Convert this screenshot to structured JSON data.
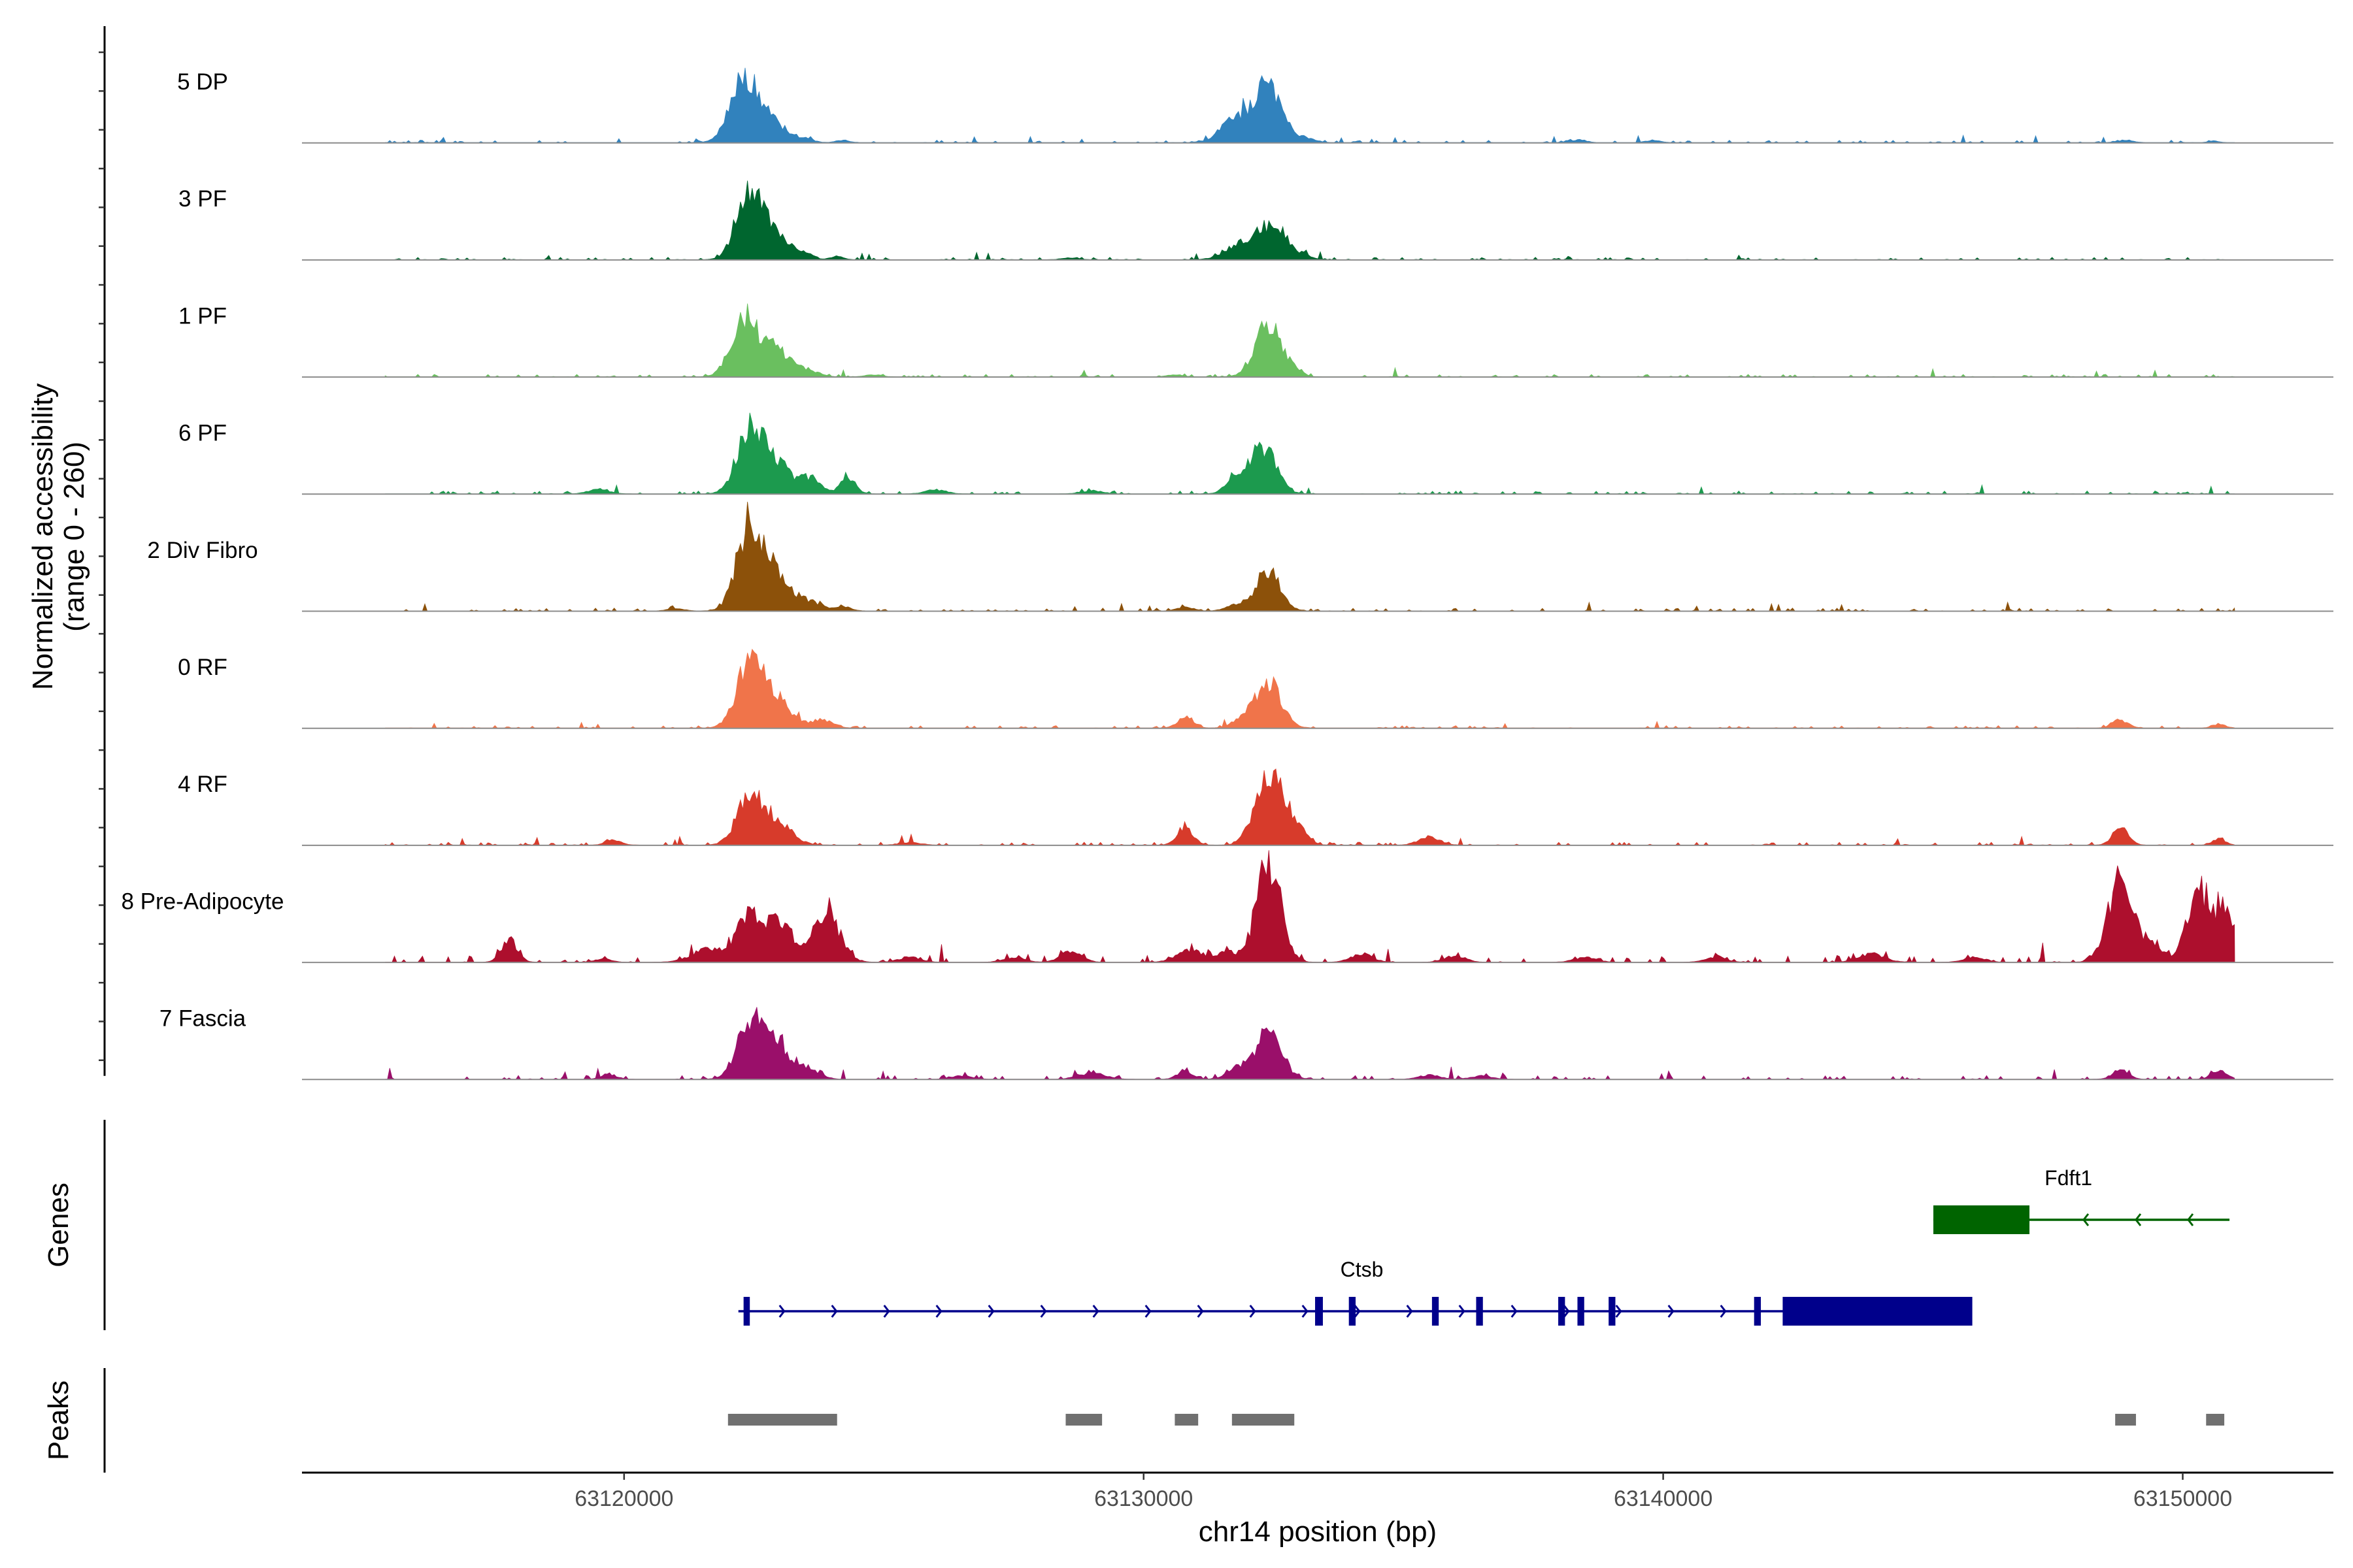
{
  "chart_data": {
    "type": "area",
    "title": "",
    "xlabel": "chr14 position (bp)",
    "ylabel": "Normalized accessibility\n(range 0 - 260)",
    "ylim": [
      0,
      260
    ],
    "xlim": [
      63113800,
      63152900
    ],
    "x_ticks": [
      63120000,
      63130000,
      63140000,
      63150000
    ],
    "x_tick_labels": [
      "63120000",
      "63130000",
      "63140000",
      "63150000"
    ],
    "panels": {
      "coverage": "Normalized accessibility\n(range 0 - 260)",
      "genes": "Genes",
      "peaks": "Peaks"
    },
    "series": [
      {
        "name": "5 DP",
        "color": "#3182bd",
        "peaks": [
          [
            63122300,
            150,
            260
          ],
          [
            63122800,
            55,
            300
          ],
          [
            63123500,
            8,
            150
          ],
          [
            63124200,
            6,
            120
          ],
          [
            63131800,
            55,
            300
          ],
          [
            63132400,
            135,
            260
          ],
          [
            63133100,
            10,
            200
          ],
          [
            63138400,
            8,
            120
          ],
          [
            63139800,
            5,
            150
          ],
          [
            63148900,
            6,
            150
          ],
          [
            63150600,
            4,
            100
          ]
        ],
        "noise": 2.5
      },
      {
        "name": "3 PF",
        "color": "#00662f",
        "peaks": [
          [
            63122400,
            165,
            240
          ],
          [
            63122900,
            60,
            300
          ],
          [
            63123500,
            10,
            150
          ],
          [
            63124100,
            8,
            120
          ],
          [
            63131900,
            40,
            300
          ],
          [
            63132500,
            85,
            250
          ],
          [
            63133100,
            10,
            150
          ],
          [
            63128600,
            5,
            150
          ]
        ],
        "noise": 2.5
      },
      {
        "name": "1 PF",
        "color": "#6abf5f",
        "peaks": [
          [
            63122300,
            140,
            240
          ],
          [
            63122900,
            70,
            300
          ],
          [
            63123600,
            12,
            180
          ],
          [
            63132400,
            130,
            250
          ],
          [
            63132900,
            12,
            150
          ],
          [
            63124800,
            5,
            150
          ],
          [
            63130600,
            5,
            150
          ]
        ],
        "noise": 2.5
      },
      {
        "name": "6 PF",
        "color": "#1c9a4e",
        "peaks": [
          [
            63122400,
            145,
            240
          ],
          [
            63122900,
            80,
            300
          ],
          [
            63123600,
            35,
            180
          ],
          [
            63124300,
            40,
            150
          ],
          [
            63132300,
            110,
            250
          ],
          [
            63131800,
            35,
            200
          ],
          [
            63119500,
            10,
            200
          ],
          [
            63126000,
            10,
            200
          ],
          [
            63129000,
            8,
            200
          ]
        ],
        "noise": 3
      },
      {
        "name": "2 Div Fibro",
        "color": "#8c510a",
        "peaks": [
          [
            63122400,
            195,
            240
          ],
          [
            63122900,
            90,
            300
          ],
          [
            63123600,
            20,
            200
          ],
          [
            63124200,
            12,
            150
          ],
          [
            63132400,
            100,
            230
          ],
          [
            63131800,
            15,
            200
          ],
          [
            63130800,
            10,
            150
          ],
          [
            63121000,
            6,
            150
          ]
        ],
        "noise": 3
      },
      {
        "name": "0 RF",
        "color": "#f0744a",
        "peaks": [
          [
            63122400,
            150,
            240
          ],
          [
            63122900,
            70,
            300
          ],
          [
            63123800,
            20,
            200
          ],
          [
            63132400,
            110,
            250
          ],
          [
            63130800,
            25,
            150
          ],
          [
            63131900,
            20,
            200
          ],
          [
            63148800,
            20,
            150
          ],
          [
            63150700,
            10,
            120
          ]
        ],
        "noise": 2.5
      },
      {
        "name": "4 RF",
        "color": "#d73b2b",
        "peaks": [
          [
            63122400,
            110,
            240
          ],
          [
            63122900,
            60,
            300
          ],
          [
            63130800,
            45,
            150
          ],
          [
            63132400,
            180,
            250
          ],
          [
            63132900,
            50,
            200
          ],
          [
            63135500,
            20,
            200
          ],
          [
            63119800,
            12,
            150
          ],
          [
            63148800,
            40,
            150
          ],
          [
            63150700,
            15,
            120
          ],
          [
            63125500,
            6,
            200
          ]
        ],
        "noise": 3
      },
      {
        "name": "8 Pre-Adipocyte",
        "color": "#ad0f2d",
        "peaks": [
          [
            63122400,
            110,
            250
          ],
          [
            63123000,
            100,
            250
          ],
          [
            63123900,
            120,
            250
          ],
          [
            63121600,
            30,
            300
          ],
          [
            63117800,
            55,
            150
          ],
          [
            63128600,
            25,
            200
          ],
          [
            63130900,
            30,
            250
          ],
          [
            63131600,
            25,
            200
          ],
          [
            63132400,
            250,
            230
          ],
          [
            63134200,
            20,
            200
          ],
          [
            63136000,
            15,
            200
          ],
          [
            63138500,
            12,
            200
          ],
          [
            63141000,
            12,
            200
          ],
          [
            63144000,
            20,
            250
          ],
          [
            63146000,
            12,
            200
          ],
          [
            63148800,
            195,
            240
          ],
          [
            63149400,
            45,
            200
          ],
          [
            63150300,
            180,
            220
          ],
          [
            63150800,
            115,
            180
          ],
          [
            63125500,
            12,
            200
          ],
          [
            63127500,
            12,
            200
          ],
          [
            63119600,
            8,
            150
          ]
        ],
        "noise": 7
      },
      {
        "name": "7 Fascia",
        "color": "#9a0f6a",
        "peaks": [
          [
            63122400,
            125,
            240
          ],
          [
            63122900,
            90,
            300
          ],
          [
            63123600,
            20,
            200
          ],
          [
            63132400,
            115,
            250
          ],
          [
            63131800,
            25,
            200
          ],
          [
            63129000,
            15,
            250
          ],
          [
            63130800,
            20,
            150
          ],
          [
            63119700,
            12,
            150
          ],
          [
            63148800,
            25,
            150
          ],
          [
            63150700,
            20,
            150
          ],
          [
            63135500,
            10,
            200
          ],
          [
            63136500,
            8,
            200
          ],
          [
            63126500,
            8,
            200
          ]
        ],
        "noise": 4
      }
    ],
    "genes": [
      {
        "name": "Ctsb",
        "strand": "+",
        "color": "#00008b",
        "label_x": 63134200,
        "start": 63122200,
        "end": 63145900,
        "exons": [
          [
            63122300,
            63122420
          ],
          [
            63133300,
            63133450
          ],
          [
            63133950,
            63134080
          ],
          [
            63135550,
            63135680
          ],
          [
            63136400,
            63136530
          ],
          [
            63137980,
            63138110
          ],
          [
            63138350,
            63138480
          ],
          [
            63138950,
            63139080
          ],
          [
            63141750,
            63141880
          ],
          [
            63142300,
            63145950
          ]
        ]
      },
      {
        "name": "Fdft1",
        "strand": "-",
        "color": "#006400",
        "label_x": 63147800,
        "start": 63145200,
        "end": 63150900,
        "exons": [
          [
            63145200,
            63147050
          ]
        ]
      }
    ],
    "peak_regions": [
      [
        63122000,
        63124100
      ],
      [
        63128500,
        63129200
      ],
      [
        63130600,
        63131050
      ],
      [
        63131700,
        63132900
      ],
      [
        63148700,
        63149100
      ],
      [
        63150450,
        63150800
      ]
    ]
  }
}
